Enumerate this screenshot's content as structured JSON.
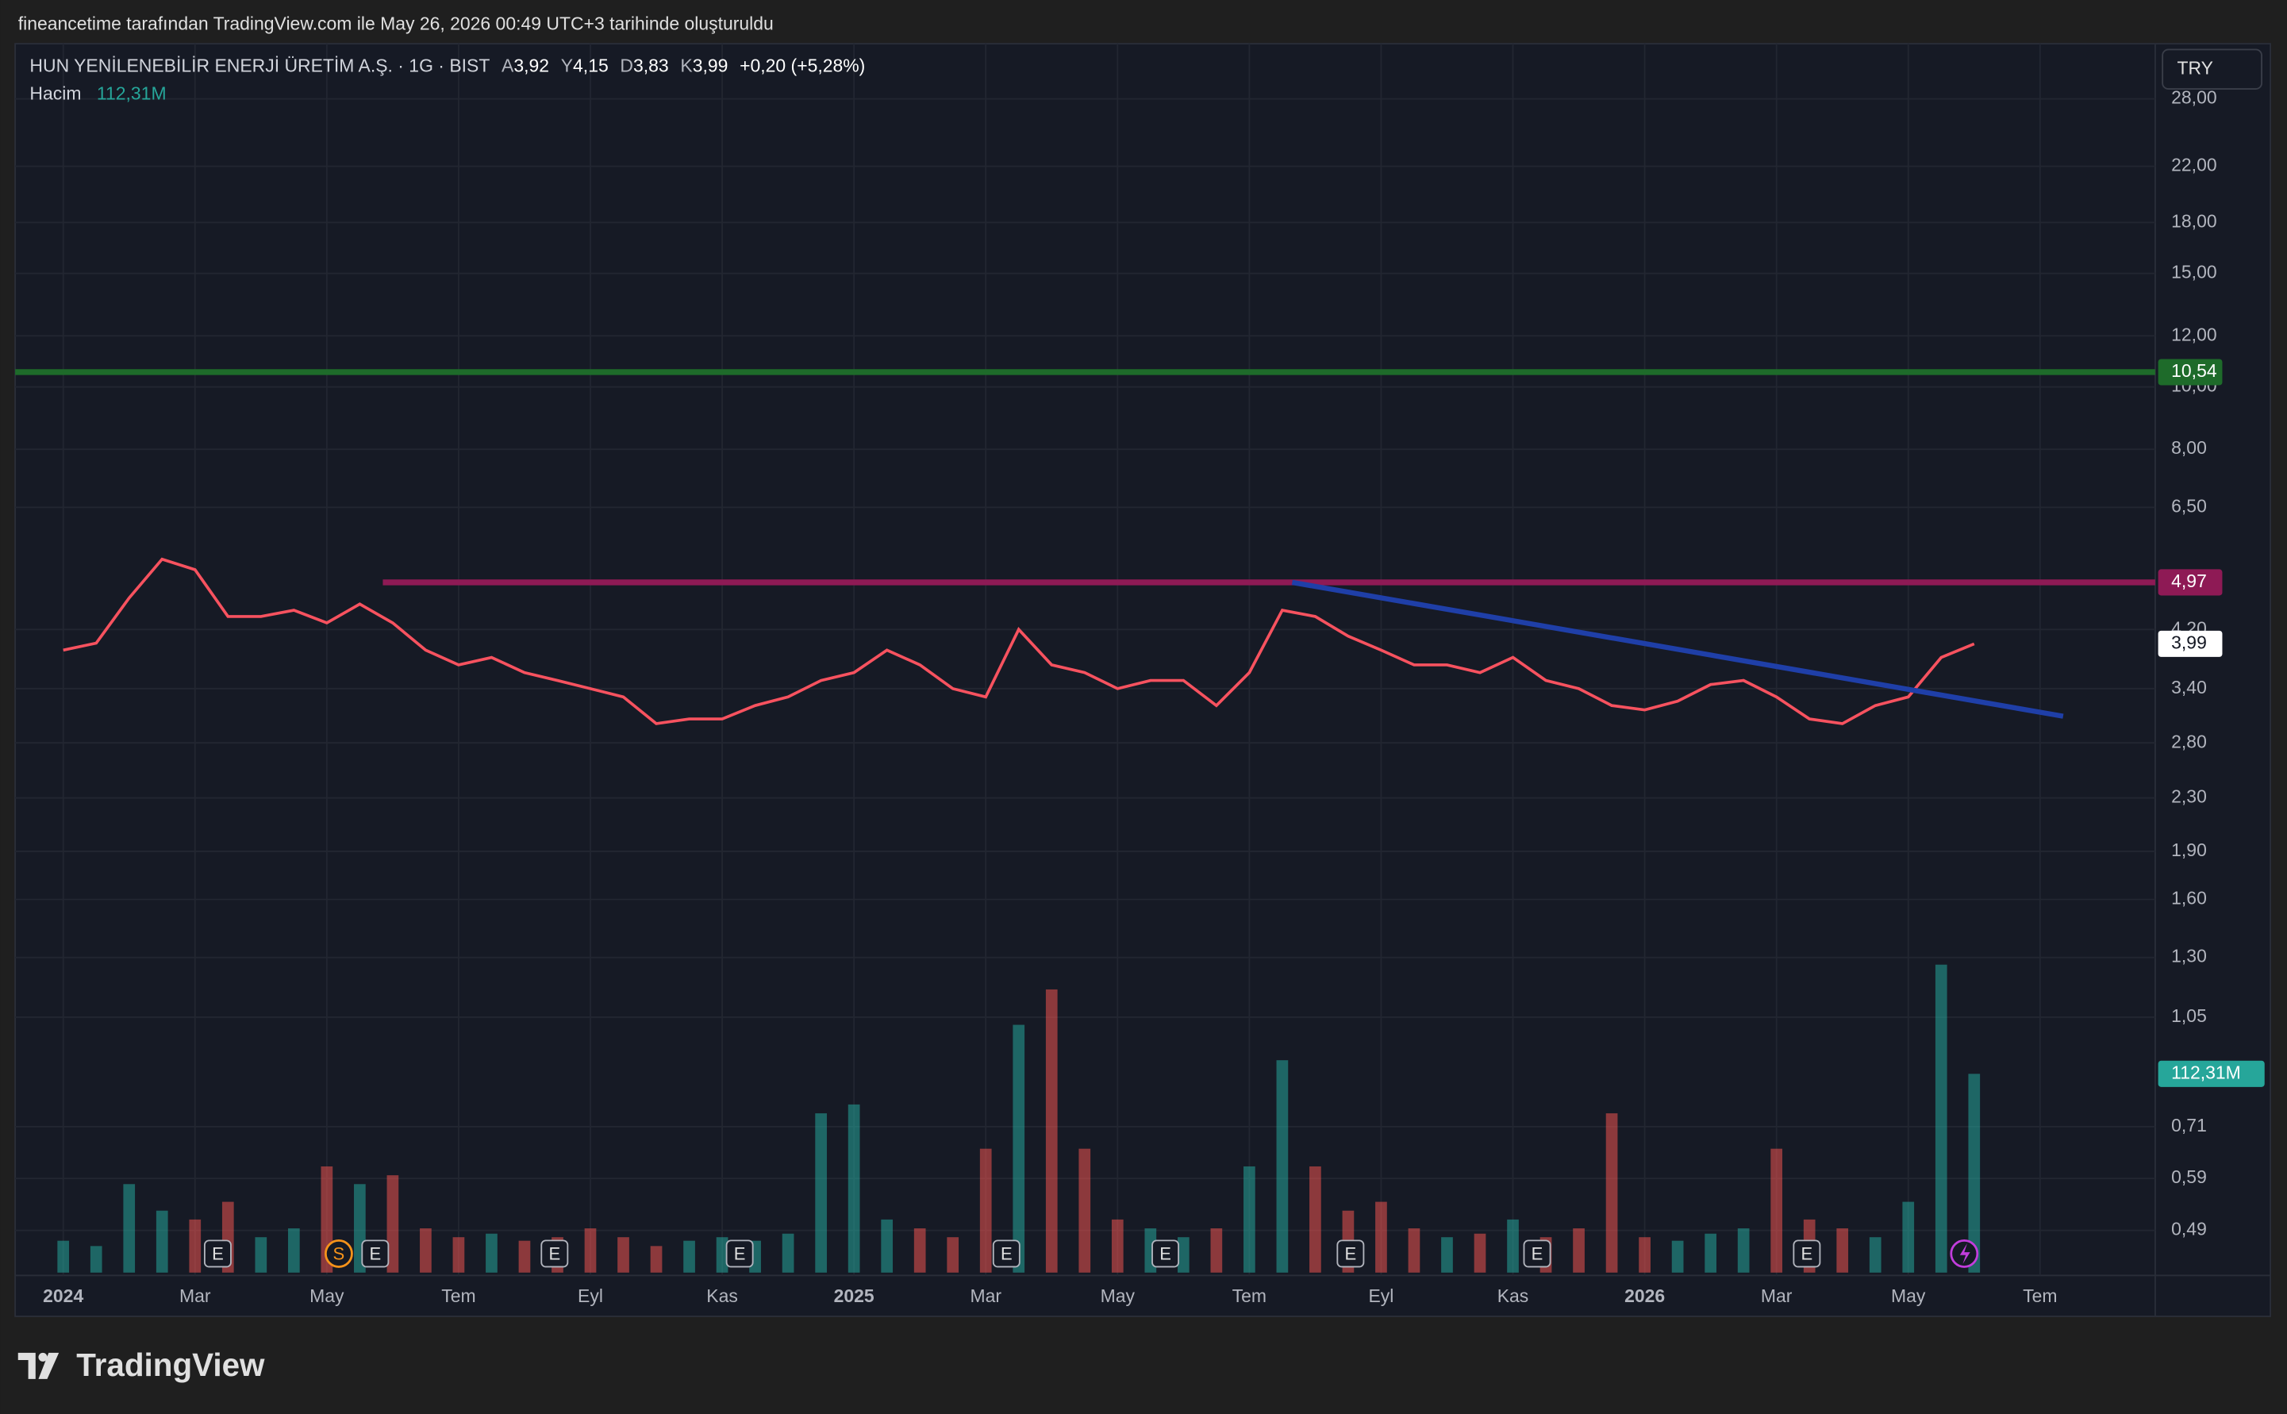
{
  "header": {
    "credit": "fineancetime tarafından TradingView.com ile May 26, 2026 00:49 UTC+3 tarihinde oluşturuldu"
  },
  "footer": {
    "brand": "TradingView"
  },
  "chart_data": {
    "type": "line",
    "currency": "TRY",
    "ohlc": [
      {
        "key": "A",
        "label": "3,92"
      },
      {
        "key": "Y",
        "label": "4,15"
      },
      {
        "key": "D",
        "label": "3,83"
      },
      {
        "key": "K",
        "label": "3,99"
      }
    ],
    "change": "+0,20 (+5,28%)",
    "log_scale": true,
    "grid": true,
    "categories": [
      "2024",
      null,
      null,
      null,
      "Mar",
      null,
      null,
      null,
      "May",
      null,
      null,
      null,
      "Tem",
      null,
      null,
      null,
      "Eyl",
      null,
      null,
      null,
      "Kas",
      null,
      null,
      null,
      "2025",
      null,
      null,
      null,
      "Mar",
      null,
      null,
      null,
      "May",
      null,
      null,
      null,
      "Tem",
      null,
      null,
      null,
      "Eyl",
      null,
      null,
      null,
      "Kas",
      null,
      null,
      null,
      "2026",
      null,
      null,
      null,
      "Mar",
      null,
      null,
      null,
      "May",
      null,
      null,
      null,
      "Tem"
    ],
    "series": [
      {
        "name": "HUN YENİLENEBİLİR ENERJİ ÜRETİM A.Ş. · 1G · BIST",
        "color": "#f7525f",
        "values": [
          3.9,
          4.0,
          4.7,
          5.4,
          5.2,
          4.4,
          4.4,
          4.5,
          4.3,
          4.6,
          4.3,
          3.9,
          3.7,
          3.8,
          3.6,
          3.5,
          3.4,
          3.3,
          3.0,
          3.05,
          3.05,
          3.2,
          3.3,
          3.5,
          3.6,
          3.9,
          3.7,
          3.4,
          3.3,
          4.2,
          3.7,
          3.6,
          3.4,
          3.5,
          3.5,
          3.2,
          3.6,
          4.5,
          4.4,
          4.1,
          3.9,
          3.7,
          3.7,
          3.6,
          3.8,
          3.5,
          3.4,
          3.2,
          3.15,
          3.25,
          3.45,
          3.5,
          3.3,
          3.05,
          3.0,
          3.2,
          3.3,
          3.8,
          3.99,
          null,
          null
        ],
        "value_labels": [
          null,
          null,
          null,
          null,
          null,
          null,
          null,
          null,
          null,
          null,
          null,
          null,
          null,
          null,
          null,
          null,
          null,
          null,
          null,
          null,
          null,
          null,
          null,
          null,
          null,
          null,
          null,
          null,
          null,
          null,
          null,
          null,
          null,
          null,
          null,
          null,
          null,
          null,
          null,
          null,
          null,
          null,
          null,
          null,
          null,
          null,
          null,
          null,
          null,
          null,
          null,
          null,
          null,
          null,
          null,
          null,
          null,
          null,
          "3,99",
          null,
          null
        ]
      },
      {
        "name": "Hacim",
        "axis": "y2",
        "color": "#26a69a",
        "down_color": "#ef5350",
        "values": [
          18,
          15,
          50,
          35,
          30,
          40,
          20,
          25,
          60,
          50,
          55,
          25,
          20,
          22,
          18,
          20,
          25,
          20,
          15,
          18,
          20,
          18,
          22,
          90,
          95,
          30,
          25,
          20,
          70,
          140,
          160,
          70,
          30,
          25,
          20,
          25,
          60,
          120,
          60,
          35,
          40,
          25,
          20,
          22,
          30,
          20,
          25,
          90,
          20,
          18,
          22,
          25,
          70,
          30,
          25,
          20,
          40,
          174,
          112.31,
          null,
          null
        ],
        "value_labels": [
          null,
          null,
          null,
          null,
          null,
          null,
          null,
          null,
          null,
          null,
          null,
          null,
          null,
          null,
          null,
          null,
          null,
          null,
          null,
          null,
          null,
          null,
          null,
          null,
          null,
          null,
          null,
          null,
          null,
          null,
          null,
          null,
          null,
          null,
          null,
          null,
          null,
          null,
          null,
          null,
          null,
          null,
          null,
          null,
          null,
          null,
          null,
          null,
          null,
          null,
          null,
          null,
          null,
          null,
          null,
          null,
          null,
          null,
          "112,31M",
          null,
          null
        ]
      }
    ],
    "ylim": [
      0.417,
      34.1
    ],
    "y2lim": [
      0,
      696
    ],
    "yticks": [
      {
        "value": 28,
        "label": "28,00"
      },
      {
        "value": 22,
        "label": "22,00"
      },
      {
        "value": 18,
        "label": "18,00"
      },
      {
        "value": 15,
        "label": "15,00"
      },
      {
        "value": 12,
        "label": "12,00"
      },
      {
        "value": 10,
        "label": "10,00"
      },
      {
        "value": 8,
        "label": "8,00"
      },
      {
        "value": 6.5,
        "label": "6,50"
      },
      {
        "value": 4.2,
        "label": "4,20"
      },
      {
        "value": 3.4,
        "label": "3,40"
      },
      {
        "value": 2.8,
        "label": "2,80"
      },
      {
        "value": 2.3,
        "label": "2,30"
      },
      {
        "value": 1.9,
        "label": "1,90"
      },
      {
        "value": 1.6,
        "label": "1,60"
      },
      {
        "value": 1.3,
        "label": "1,30"
      },
      {
        "value": 1.05,
        "label": "1,05"
      },
      {
        "value": 0.71,
        "label": "0,71"
      },
      {
        "value": 0.59,
        "label": "0,59"
      },
      {
        "value": 0.49,
        "label": "0,49"
      }
    ],
    "price_lines": [
      {
        "value": 10.54,
        "label": "10,54",
        "color": "#1e6b2a",
        "start": 0
      },
      {
        "value": 4.97,
        "label": "4,97",
        "color": "#8e1a55",
        "start": 9.7
      }
    ],
    "trend_line": {
      "color": "#1f3fa8",
      "x": [
        37.3,
        60.7
      ],
      "y": [
        4.97,
        3.08
      ]
    },
    "events": [
      "E",
      "S",
      "E",
      "E",
      "E",
      "E",
      "E",
      "E",
      "E",
      "E"
    ]
  }
}
